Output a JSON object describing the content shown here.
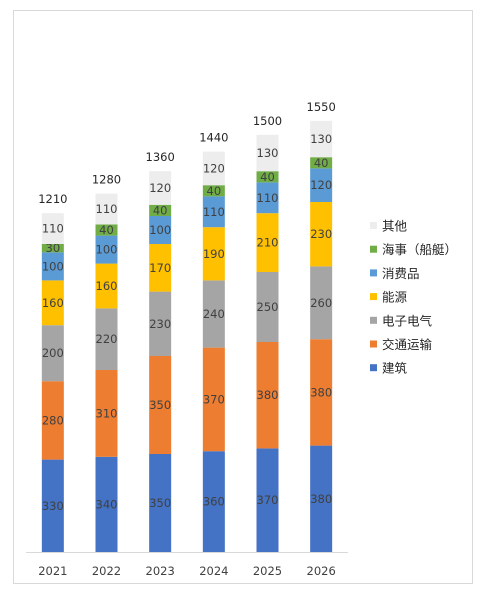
{
  "chart_data": {
    "type": "bar",
    "stacked": true,
    "title": "",
    "xlabel": "",
    "ylabel": "",
    "ylim": [
      0,
      1650
    ],
    "grid": false,
    "legend_position": "right",
    "categories": [
      "2021",
      "2022",
      "2023",
      "2024",
      "2025",
      "2026"
    ],
    "totals": [
      1210,
      1280,
      1360,
      1440,
      1500,
      1550
    ],
    "series": [
      {
        "name": "建筑",
        "color": "#4472c4",
        "values": [
          330,
          340,
          350,
          360,
          370,
          380
        ]
      },
      {
        "name": "交通运输",
        "color": "#ed7d31",
        "values": [
          280,
          310,
          350,
          370,
          380,
          380
        ]
      },
      {
        "name": "电子电气",
        "color": "#a5a5a5",
        "values": [
          200,
          220,
          230,
          240,
          250,
          260
        ]
      },
      {
        "name": "能源",
        "color": "#ffc000",
        "values": [
          160,
          160,
          170,
          190,
          210,
          230
        ]
      },
      {
        "name": "消费品",
        "color": "#5b9bd5",
        "values": [
          100,
          100,
          100,
          110,
          110,
          120
        ]
      },
      {
        "name": "海事（船艇）",
        "color": "#70ad47",
        "values": [
          30,
          40,
          40,
          40,
          40,
          40
        ]
      },
      {
        "name": "其他",
        "color": "#ededed",
        "values": [
          110,
          110,
          120,
          120,
          130,
          130
        ]
      }
    ]
  }
}
